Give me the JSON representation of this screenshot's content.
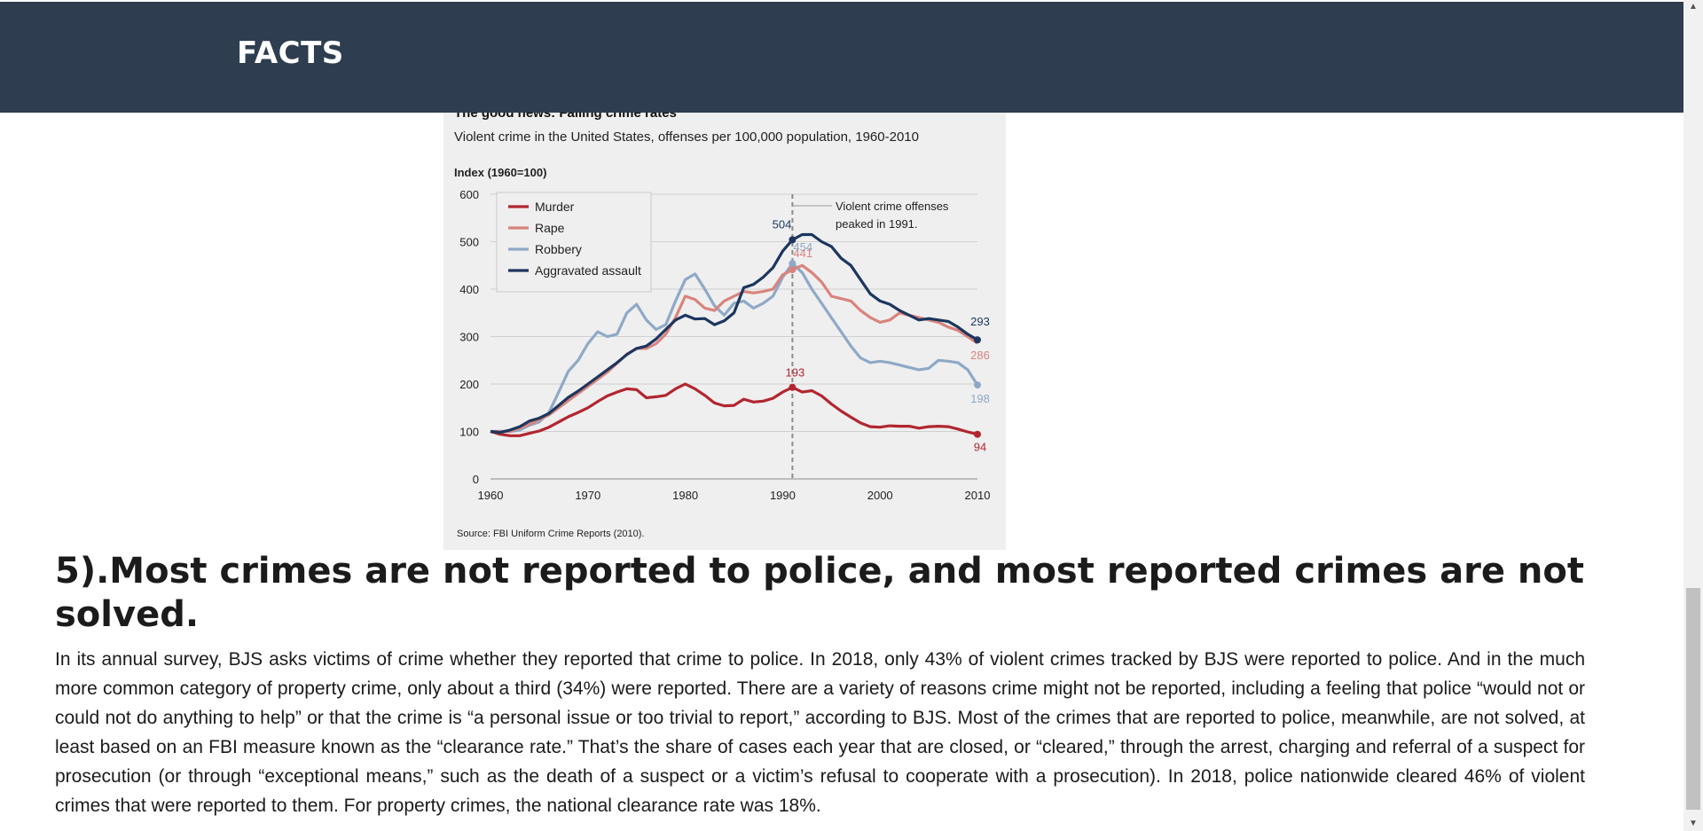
{
  "header": {
    "title": "FACTS"
  },
  "chart": {
    "heading_partial": "The good news: Falling crime rates",
    "subtitle": "Violent crime in the United States, offenses per 100,000 population, 1960-2010",
    "source": "Source: FBI Uniform Crime Reports (2010).",
    "annotation": "Violent crime offenses peaked in 1991.",
    "colors": {
      "murder": "#b22630",
      "rape": "#d9837d",
      "robbery": "#8ea9c7",
      "aggravated_assault": "#1c365f",
      "background": "#efefef"
    }
  },
  "chart_data": {
    "type": "line",
    "ylabel": "Index (1960=100)",
    "xlim": [
      1960,
      2010
    ],
    "ylim": [
      0,
      600
    ],
    "xticks": [
      "1960",
      "1970",
      "1980",
      "1990",
      "2000",
      "2010"
    ],
    "yticks": [
      "0",
      "100",
      "200",
      "300",
      "400",
      "500",
      "600"
    ],
    "grid": true,
    "legend_position": "top-left",
    "reference_line_x": 1991,
    "data_labels": [
      "504",
      "454",
      "441",
      "193",
      "293",
      "286",
      "198",
      "94"
    ],
    "series": [
      {
        "name": "Murder",
        "x": [
          1960,
          1961,
          1962,
          1963,
          1964,
          1965,
          1966,
          1967,
          1968,
          1969,
          1970,
          1971,
          1972,
          1973,
          1974,
          1975,
          1976,
          1977,
          1978,
          1979,
          1980,
          1981,
          1982,
          1983,
          1984,
          1985,
          1986,
          1987,
          1988,
          1989,
          1990,
          1991,
          1992,
          1993,
          1994,
          1995,
          1996,
          1997,
          1998,
          1999,
          2000,
          2001,
          2002,
          2003,
          2004,
          2005,
          2006,
          2007,
          2008,
          2009,
          2010
        ],
        "values": [
          100,
          94,
          91,
          91,
          96,
          101,
          109,
          120,
          131,
          140,
          150,
          163,
          175,
          183,
          190,
          188,
          171,
          173,
          176,
          190,
          200,
          190,
          176,
          160,
          154,
          155,
          168,
          162,
          164,
          170,
          183,
          193,
          183,
          186,
          175,
          158,
          143,
          130,
          118,
          110,
          109,
          112,
          111,
          111,
          107,
          110,
          111,
          110,
          105,
          99,
          94
        ]
      },
      {
        "name": "Rape",
        "x": [
          1960,
          1962,
          1964,
          1966,
          1968,
          1970,
          1972,
          1974,
          1975,
          1976,
          1977,
          1978,
          1979,
          1980,
          1981,
          1982,
          1983,
          1984,
          1985,
          1986,
          1987,
          1988,
          1989,
          1990,
          1991,
          1992,
          1993,
          1994,
          1995,
          1996,
          1997,
          1998,
          1999,
          2000,
          2001,
          2002,
          2003,
          2004,
          2005,
          2006,
          2007,
          2008,
          2009,
          2010
        ],
        "values": [
          100,
          100,
          115,
          135,
          165,
          195,
          225,
          263,
          275,
          275,
          285,
          305,
          340,
          385,
          378,
          360,
          355,
          375,
          385,
          395,
          392,
          395,
          400,
          430,
          441,
          450,
          435,
          415,
          385,
          380,
          375,
          355,
          340,
          330,
          335,
          350,
          345,
          340,
          335,
          330,
          320,
          313,
          300,
          286
        ]
      },
      {
        "name": "Robbery",
        "x": [
          1960,
          1961,
          1962,
          1963,
          1964,
          1965,
          1966,
          1967,
          1968,
          1969,
          1970,
          1971,
          1972,
          1973,
          1974,
          1975,
          1976,
          1977,
          1978,
          1979,
          1980,
          1981,
          1982,
          1983,
          1984,
          1985,
          1986,
          1987,
          1988,
          1989,
          1990,
          1991,
          1992,
          1993,
          1994,
          1995,
          1996,
          1997,
          1998,
          1999,
          2000,
          2001,
          2002,
          2003,
          2004,
          2005,
          2006,
          2007,
          2008,
          2009,
          2010
        ],
        "values": [
          100,
          100,
          100,
          103,
          113,
          120,
          140,
          183,
          227,
          250,
          285,
          310,
          300,
          305,
          350,
          368,
          335,
          315,
          325,
          375,
          420,
          432,
          400,
          365,
          345,
          370,
          375,
          360,
          370,
          385,
          425,
          454,
          435,
          400,
          370,
          340,
          310,
          280,
          255,
          245,
          248,
          245,
          240,
          235,
          230,
          233,
          250,
          248,
          245,
          230,
          198
        ]
      },
      {
        "name": "Aggravated assault",
        "x": [
          1960,
          1961,
          1962,
          1963,
          1964,
          1965,
          1966,
          1967,
          1968,
          1969,
          1970,
          1971,
          1972,
          1973,
          1974,
          1975,
          1976,
          1977,
          1978,
          1979,
          1980,
          1981,
          1982,
          1983,
          1984,
          1985,
          1986,
          1987,
          1988,
          1989,
          1990,
          1991,
          1992,
          1993,
          1994,
          1995,
          1996,
          1997,
          1998,
          1999,
          2000,
          2001,
          2002,
          2003,
          2004,
          2005,
          2006,
          2007,
          2008,
          2009,
          2010
        ],
        "values": [
          100,
          98,
          103,
          110,
          122,
          128,
          138,
          155,
          172,
          185,
          200,
          215,
          230,
          245,
          262,
          275,
          280,
          295,
          315,
          335,
          345,
          337,
          338,
          325,
          333,
          350,
          403,
          410,
          425,
          445,
          480,
          504,
          515,
          515,
          500,
          490,
          465,
          450,
          420,
          390,
          375,
          368,
          355,
          345,
          335,
          338,
          335,
          332,
          320,
          305,
          293
        ]
      }
    ]
  },
  "article": {
    "headline": "5).Most crimes are not reported to police, and most reported crimes are not solved.",
    "paragraph": "In its annual survey, BJS asks victims of crime whether they reported that crime to police. In 2018, only 43% of violent crimes tracked by BJS were reported to police. And in the much more common category of property crime, only about a third (34%) were reported. There are a variety of reasons crime might not be reported, including a feeling that police “would not or could not do anything to help” or that the crime is “a personal issue or too trivial to report,” according to BJS. Most of the crimes that are reported to police, meanwhile, are not solved, at least based on an FBI measure known as the “clearance rate.” That’s the share of cases each year that are closed, or “cleared,” through the arrest, charging and referral of a suspect for prosecution (or through “exceptional means,” such as the death of a suspect or a victim’s refusal to cooperate with a prosecution). In 2018, police nationwide cleared 46% of violent crimes that were reported to them. For property crimes, the national clearance rate was 18%."
  },
  "scrollbar": {
    "up_icon": "scroll-up-arrow-icon",
    "down_icon": "scroll-down-arrow-icon"
  }
}
